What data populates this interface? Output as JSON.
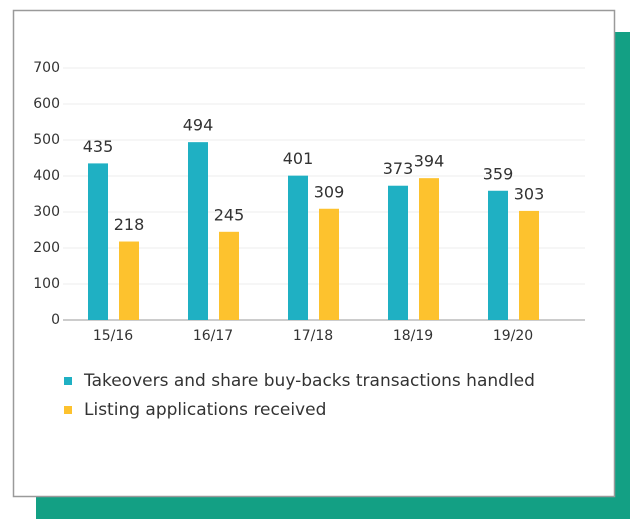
{
  "chart_data": {
    "type": "bar",
    "categories": [
      "15/16",
      "16/17",
      "17/18",
      "18/19",
      "19/20"
    ],
    "series": [
      {
        "name": "Takeovers and share buy-backs transactions handled",
        "color": "#1fb0c3",
        "values": [
          435,
          494,
          401,
          373,
          359
        ]
      },
      {
        "name": "Listing applications received",
        "color": "#fdc22e",
        "values": [
          218,
          245,
          309,
          394,
          303
        ]
      }
    ],
    "ylim": [
      0,
      700
    ],
    "yticks": [
      0,
      100,
      200,
      300,
      400,
      500,
      600,
      700
    ],
    "grid": true
  }
}
